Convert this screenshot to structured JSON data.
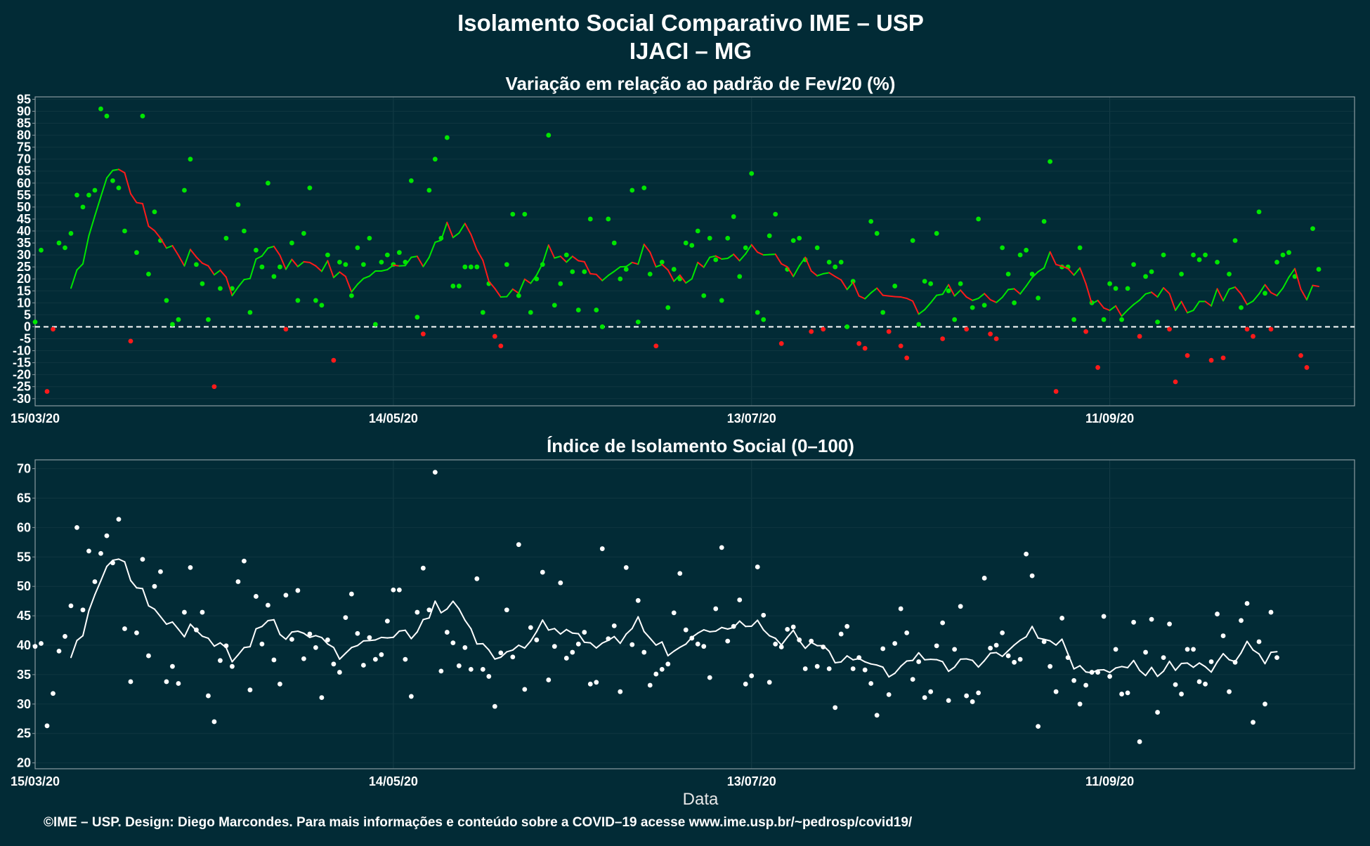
{
  "header": {
    "title": "Isolamento Social Comparativo IME – USP",
    "subtitle": "IJACI – MG"
  },
  "footer": {
    "xlabel": "Data",
    "caption": "©IME – USP. Design: Diego Marcondes. Para mais informações e conteúdo sobre a COVID–19 acesse www.ime.usp.br/~pedrosp/covid19/"
  },
  "colors": {
    "background": "#022b36",
    "positive": "#00e600",
    "negative": "#ff1a1a",
    "index_points": "#ffffff",
    "frame": "#8a9aa0"
  },
  "chart_data": [
    {
      "type": "scatter",
      "title": "Variação em relação ao padrão de Fev/20 (%)",
      "xlabel": "",
      "ylabel": "",
      "x_start": "15/03/20",
      "x_ticks": [
        {
          "label": "15/03/20",
          "day": 0
        },
        {
          "label": "14/05/20",
          "day": 60
        },
        {
          "label": "13/07/20",
          "day": 120
        },
        {
          "label": "11/09/20",
          "day": 180
        }
      ],
      "xlim_days": [
        0,
        221
      ],
      "ylim": [
        -33,
        96
      ],
      "yticks": [
        -30,
        -25,
        -20,
        -15,
        -10,
        -5,
        0,
        5,
        10,
        15,
        20,
        25,
        30,
        35,
        40,
        45,
        50,
        55,
        60,
        65,
        70,
        75,
        80,
        85,
        90,
        95
      ],
      "reference_line": 0,
      "grid": true,
      "smooth_line": "7-day moving average; green segment when rising, red when falling",
      "values": [
        2,
        32,
        -27,
        -1,
        35,
        33,
        39,
        55,
        50,
        55,
        57,
        91,
        88,
        61,
        58,
        40,
        -6,
        31,
        88,
        22,
        48,
        36,
        11,
        1,
        3,
        57,
        70,
        26,
        18,
        3,
        -25,
        16,
        37,
        16,
        51,
        40,
        6,
        32,
        25,
        60,
        21,
        25,
        -1,
        35,
        11,
        39,
        58,
        11,
        9,
        30,
        -14,
        27,
        26,
        13,
        33,
        26,
        37,
        1,
        27,
        30,
        26,
        31,
        27,
        61,
        4,
        -3,
        57,
        70,
        37,
        79,
        17,
        17,
        25,
        25,
        25,
        6,
        18,
        -4,
        -8,
        26,
        47,
        13,
        47,
        6,
        20,
        26,
        80,
        9,
        18,
        30,
        23,
        7,
        23,
        45,
        7,
        0,
        45,
        35,
        20,
        24,
        57,
        2,
        58,
        22,
        -8,
        27,
        8,
        24,
        20,
        35,
        34,
        40,
        13,
        37,
        28,
        11,
        37,
        46,
        21,
        33,
        64,
        6,
        3,
        38,
        47,
        -7,
        24,
        36,
        37,
        28,
        -2,
        33,
        -1,
        27,
        25,
        27,
        0,
        19,
        -7,
        -9,
        44,
        39,
        6,
        -2,
        17,
        -8,
        -13,
        36,
        1,
        19,
        18,
        39,
        -5,
        15,
        3,
        18,
        -1,
        8,
        45,
        9,
        -3,
        -5,
        33,
        22,
        10,
        30,
        32,
        22,
        12,
        44,
        69,
        -27,
        25,
        25,
        3,
        33,
        -2,
        10,
        -17,
        3,
        18,
        16,
        3,
        16,
        26,
        -4,
        21,
        23,
        2,
        30,
        -1,
        -23,
        22,
        -12,
        30,
        28,
        30,
        -14,
        27,
        -13,
        22,
        36,
        8,
        -1,
        -4,
        48,
        14,
        -1,
        27,
        30,
        31,
        21,
        -12,
        -17,
        41,
        24
      ]
    },
    {
      "type": "scatter",
      "title": "Índice de Isolamento Social (0–100)",
      "xlabel": "Data",
      "ylabel": "",
      "x_start": "15/03/20",
      "x_ticks": [
        {
          "label": "15/03/20",
          "day": 0
        },
        {
          "label": "14/05/20",
          "day": 60
        },
        {
          "label": "13/07/20",
          "day": 120
        },
        {
          "label": "11/09/20",
          "day": 180
        }
      ],
      "xlim_days": [
        0,
        221
      ],
      "ylim": [
        19,
        71.5
      ],
      "yticks": [
        20,
        25,
        30,
        35,
        40,
        45,
        50,
        55,
        60,
        65,
        70
      ],
      "grid": true,
      "smooth_line": "7-day moving average",
      "values": [
        39.8,
        40.3,
        26.3,
        31.8,
        39,
        41.5,
        46.7,
        60,
        46,
        56,
        50.8,
        55.6,
        58.6,
        54,
        61.4,
        42.8,
        33.8,
        42.1,
        54.6,
        38.2,
        50,
        52.5,
        33.8,
        36.4,
        33.5,
        45.6,
        53.2,
        42.6,
        45.6,
        31.4,
        27,
        37.4,
        39.9,
        36.4,
        50.8,
        54.3,
        32.4,
        48.3,
        40.2,
        46.8,
        37.5,
        33.4,
        48.5,
        41,
        49.3,
        37.7,
        41.9,
        39.6,
        31.1,
        40.9,
        36.8,
        35.4,
        44.7,
        48.7,
        42,
        36.6,
        41.3,
        37.6,
        38.4,
        44.1,
        49.4,
        49.4,
        37.6,
        31.3,
        45.6,
        53.1,
        46,
        69.4,
        35.6,
        42.2,
        40.4,
        36.5,
        39.6,
        35.9,
        51.3,
        35.9,
        34.7,
        29.6,
        38.7,
        46,
        38,
        57.1,
        32.5,
        43,
        40.9,
        52.4,
        34.1,
        39.8,
        50.6,
        37.8,
        38.8,
        40.2,
        42.2,
        33.4,
        33.7,
        56.4,
        41.1,
        43.3,
        32.1,
        53.2,
        40.1,
        47.6,
        38.8,
        33.2,
        35.1,
        35.9,
        36.8,
        45.5,
        52.2,
        42.6,
        41.2,
        40.2,
        39.8,
        34.5,
        46.2,
        56.6,
        40.7,
        43.2,
        47.7,
        33.4,
        34.8,
        53.3,
        45.1,
        33.7,
        40.2,
        39.7,
        42.7,
        43.1,
        40.9,
        36,
        40.7,
        36.4,
        39.7,
        36,
        29.4,
        41.9,
        43.2,
        36,
        37.9,
        35.8,
        33.5,
        28.1,
        39.4,
        31.6,
        40.3,
        46.2,
        42.1,
        34.2,
        37.2,
        31.1,
        32.1,
        39.9,
        43.8,
        30.6,
        39.3,
        46.6,
        31.4,
        30.4,
        31.9,
        51.4,
        39.5,
        40,
        42.1,
        38.2,
        37.1,
        37.6,
        55.5,
        51.8,
        26.2,
        40.6,
        36.4,
        32.1,
        44.6,
        37.9,
        34,
        30,
        33.2,
        35.4,
        35.4,
        44.9,
        34.7,
        39.3,
        31.7,
        31.9,
        43.9,
        23.6,
        38.8,
        44.4,
        28.6,
        37.9,
        43.6,
        33.3,
        31.7,
        39.3,
        39.3,
        33.8,
        33.4,
        37.2,
        45.3,
        41.6,
        32.1,
        37.1,
        44.2,
        47.1,
        26.9,
        40.6,
        30,
        45.6,
        37.9
      ]
    }
  ]
}
